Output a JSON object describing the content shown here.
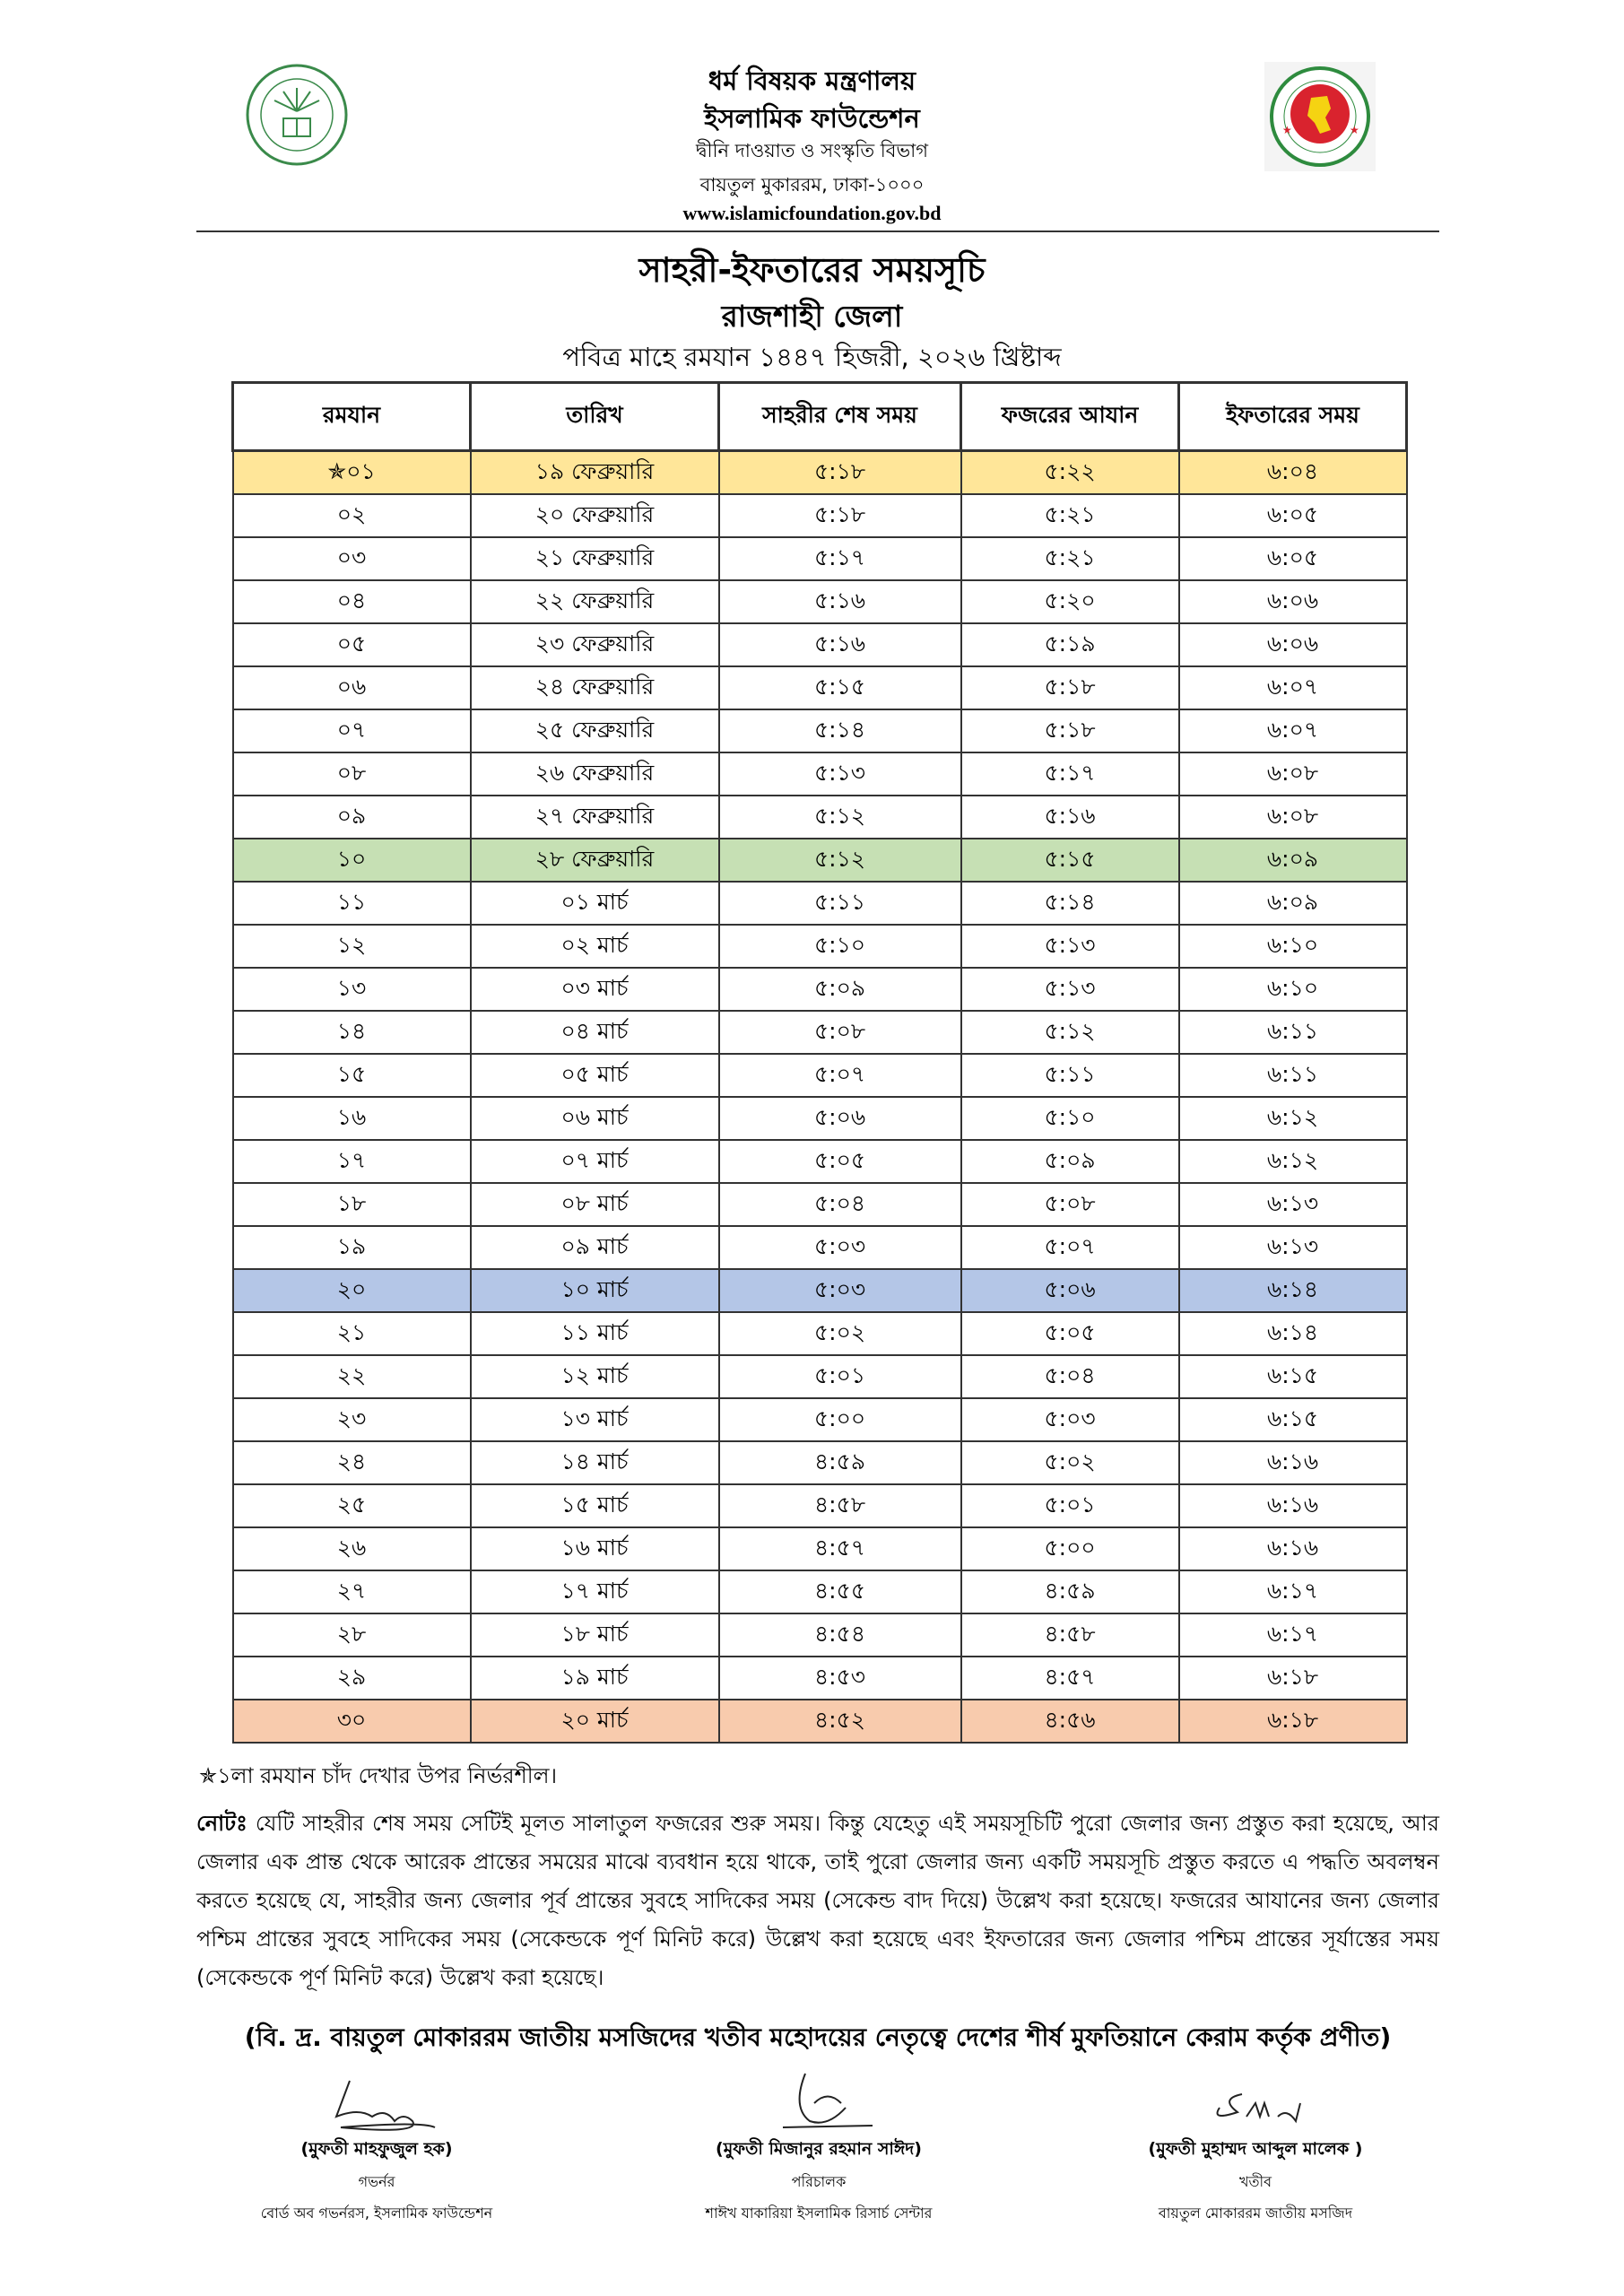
{
  "header": {
    "ministry": "ধর্ম বিষয়ক মন্ত্রণালয়",
    "organization": "ইসলামিক ফাউন্ডেশন",
    "department": "দ্বীনি দাওয়াত ও সংস্কৃতি বিভাগ",
    "address": "বায়তুল মুকাররম, ঢাকা-১০০০",
    "website": "www.islamicfoundation.gov.bd",
    "left_logo": "islamic-foundation-logo",
    "right_logo": "bangladesh-government-seal"
  },
  "title": "সাহরী-ইফতারের সময়সূচি",
  "district": "রাজশাহী জেলা",
  "year_line": "পবিত্র মাহে রমযান ১৪৪৭ হিজরী, ২০২৬ খ্রিষ্টাব্দ",
  "table": {
    "columns": [
      "রমযান",
      "তারিখ",
      "সাহরীর শেষ সময়",
      "ফজরের আযান",
      "ইফতারের সময়"
    ],
    "rows": [
      {
        "cells": [
          "✯০১",
          "১৯ ফেব্রুয়ারি",
          "৫:১৮",
          "৫:২২",
          "৬:০৪"
        ],
        "highlight": "#FFE699"
      },
      {
        "cells": [
          "০২",
          "২০ ফেব্রুয়ারি",
          "৫:১৮",
          "৫:২১",
          "৬:০৫"
        ]
      },
      {
        "cells": [
          "০৩",
          "২১ ফেব্রুয়ারি",
          "৫:১৭",
          "৫:২১",
          "৬:০৫"
        ]
      },
      {
        "cells": [
          "০৪",
          "২২ ফেব্রুয়ারি",
          "৫:১৬",
          "৫:২০",
          "৬:০৬"
        ]
      },
      {
        "cells": [
          "০৫",
          "২৩ ফেব্রুয়ারি",
          "৫:১৬",
          "৫:১৯",
          "৬:০৬"
        ]
      },
      {
        "cells": [
          "০৬",
          "২৪ ফেব্রুয়ারি",
          "৫:১৫",
          "৫:১৮",
          "৬:০৭"
        ]
      },
      {
        "cells": [
          "০৭",
          "২৫ ফেব্রুয়ারি",
          "৫:১৪",
          "৫:১৮",
          "৬:০৭"
        ]
      },
      {
        "cells": [
          "০৮",
          "২৬ ফেব্রুয়ারি",
          "৫:১৩",
          "৫:১৭",
          "৬:০৮"
        ]
      },
      {
        "cells": [
          "০৯",
          "২৭ ফেব্রুয়ারি",
          "৫:১২",
          "৫:১৬",
          "৬:০৮"
        ]
      },
      {
        "cells": [
          "১০",
          "২৮ ফেব্রুয়ারি",
          "৫:১২",
          "৫:১৫",
          "৬:০৯"
        ],
        "highlight": "#C6E0B4"
      },
      {
        "cells": [
          "১১",
          "০১ মার্চ",
          "৫:১১",
          "৫:১৪",
          "৬:০৯"
        ]
      },
      {
        "cells": [
          "১২",
          "০২ মার্চ",
          "৫:১০",
          "৫:১৩",
          "৬:১০"
        ]
      },
      {
        "cells": [
          "১৩",
          "০৩ মার্চ",
          "৫:০৯",
          "৫:১৩",
          "৬:১০"
        ]
      },
      {
        "cells": [
          "১৪",
          "০৪ মার্চ",
          "৫:০৮",
          "৫:১২",
          "৬:১১"
        ]
      },
      {
        "cells": [
          "১৫",
          "০৫ মার্চ",
          "৫:০৭",
          "৫:১১",
          "৬:১১"
        ]
      },
      {
        "cells": [
          "১৬",
          "০৬ মার্চ",
          "৫:০৬",
          "৫:১০",
          "৬:১২"
        ]
      },
      {
        "cells": [
          "১৭",
          "০৭ মার্চ",
          "৫:০৫",
          "৫:০৯",
          "৬:১২"
        ]
      },
      {
        "cells": [
          "১৮",
          "০৮ মার্চ",
          "৫:০৪",
          "৫:০৮",
          "৬:১৩"
        ]
      },
      {
        "cells": [
          "১৯",
          "০৯ মার্চ",
          "৫:০৩",
          "৫:০৭",
          "৬:১৩"
        ]
      },
      {
        "cells": [
          "২০",
          "১০ মার্চ",
          "৫:০৩",
          "৫:০৬",
          "৬:১৪"
        ],
        "highlight": "#B4C6E7"
      },
      {
        "cells": [
          "২১",
          "১১ মার্চ",
          "৫:০২",
          "৫:০৫",
          "৬:১৪"
        ]
      },
      {
        "cells": [
          "২২",
          "১২ মার্চ",
          "৫:০১",
          "৫:০৪",
          "৬:১৫"
        ]
      },
      {
        "cells": [
          "২৩",
          "১৩ মার্চ",
          "৫:০০",
          "৫:০৩",
          "৬:১৫"
        ]
      },
      {
        "cells": [
          "২৪",
          "১৪ মার্চ",
          "৪:৫৯",
          "৫:০২",
          "৬:১৬"
        ]
      },
      {
        "cells": [
          "২৫",
          "১৫ মার্চ",
          "৪:৫৮",
          "৫:০১",
          "৬:১৬"
        ]
      },
      {
        "cells": [
          "২৬",
          "১৬ মার্চ",
          "৪:৫৭",
          "৫:০০",
          "৬:১৬"
        ]
      },
      {
        "cells": [
          "২৭",
          "১৭ মার্চ",
          "৪:৫৫",
          "৪:৫৯",
          "৬:১৭"
        ]
      },
      {
        "cells": [
          "২৮",
          "১৮ মার্চ",
          "৪:৫৪",
          "৪:৫৮",
          "৬:১৭"
        ]
      },
      {
        "cells": [
          "২৯",
          "১৯ মার্চ",
          "৪:৫৩",
          "৪:৫৭",
          "৬:১৮"
        ]
      },
      {
        "cells": [
          "৩০",
          "২০ মার্চ",
          "৪:৫২",
          "৪:৫৬",
          "৬:১৮"
        ],
        "highlight": "#F8CBAD"
      }
    ]
  },
  "footnote": "✯১লা রমযান চাঁদ দেখার উপর নির্ভরশীল।",
  "note": {
    "label": "নোটঃ",
    "text": "যেটি সাহরীর শেষ সময় সেটিই মূলত সালাতুল ফজরের শুরু সময়। কিন্তু যেহেতু এই সময়সূচিটি পুরো জেলার জন্য প্রস্তুত করা হয়েছে, আর জেলার এক প্রান্ত থেকে আরেক প্রান্তের সময়ের মাঝে ব্যবধান হয়ে থাকে, তাই পুরো জেলার জন্য একটি সময়সূচি প্রস্তুত করতে এ পদ্ধতি অবলম্বন করতে হয়েছে যে, সাহরীর জন্য জেলার পূর্ব প্রান্তের সুবহে সাদিকের সময় (সেকেন্ড বাদ দিয়ে) উল্লেখ করা হয়েছে। ফজরের আযানের জন্য জেলার পশ্চিম প্রান্তের সুবহে সাদিকের সময় (সেকেন্ডকে পূর্ণ মিনিট করে) উল্লেখ করা হয়েছে এবং ইফতারের জন্য জেলার পশ্চিম প্রান্তের সূর্যাস্তের সময় (সেকেন্ডকে পূর্ণ মিনিট করে) উল্লেখ করা হয়েছে।"
  },
  "attribution": "(বি. দ্র. বায়তুল মোকাররম জাতীয় মসজিদের খতীব মহোদয়ের নেতৃত্বে দেশের শীর্ষ মুফতিয়ানে কেরাম কর্তৃক প্রণীত)",
  "signatories": [
    {
      "name": "(মুফতী মাহফুজুল হক)",
      "title": "গভর্নর",
      "org": "বোর্ড অব গভর্নরস, ইসলামিক ফাউন্ডেশন"
    },
    {
      "name": "(মুফতী মিজানুর রহমান সাঈদ)",
      "title": "পরিচালক",
      "org": "শাঈখ যাকারিয়া ইসলামিক রিসার্চ সেন্টার"
    },
    {
      "name": "(মুফতী মুহাম্মদ আব্দুল মালেক )",
      "title": "খতীব",
      "org": "বায়তুল মোকাররম জাতীয় মসজিদ"
    }
  ]
}
